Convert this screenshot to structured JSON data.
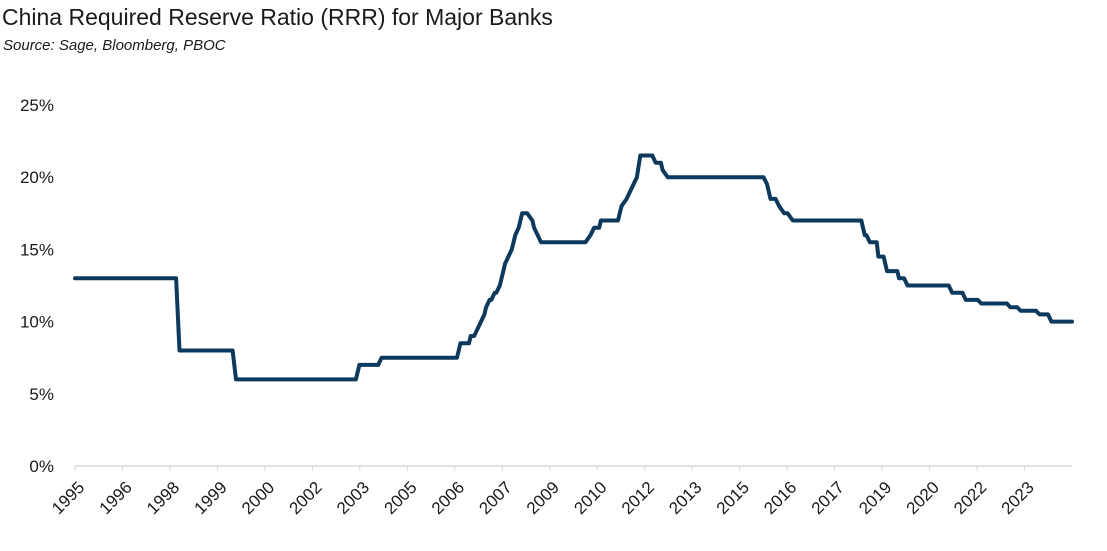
{
  "title": "China Required Reserve Ratio (RRR) for Major Banks",
  "subtitle": "Source: Sage, Bloomberg, PBOC",
  "colors": {
    "line": "#0d3a5c",
    "axis": "#d9d9d9",
    "text": "#1a1a1a"
  },
  "chart_data": {
    "type": "line",
    "title": "China Required Reserve Ratio (RRR) for Major Banks",
    "subtitle": "Source: Sage, Bloomberg, PBOC",
    "xlabel": "",
    "ylabel": "",
    "ylim": [
      0,
      25
    ],
    "xlim": [
      1995,
      2024.1
    ],
    "yticks": [
      0,
      5,
      10,
      15,
      20,
      25
    ],
    "ytick_labels": [
      "0%",
      "5%",
      "10%",
      "15%",
      "20%",
      "25%"
    ],
    "xtick_labels": [
      "1995",
      "1996",
      "1998",
      "1999",
      "2000",
      "2002",
      "2003",
      "2005",
      "2006",
      "2007",
      "2009",
      "2010",
      "2012",
      "2013",
      "2015",
      "2016",
      "2017",
      "2019",
      "2020",
      "2022",
      "2023"
    ],
    "grid": false,
    "series": [
      {
        "x": [
          1995.0,
          1997.95,
          1998.05,
          1999.6,
          1999.7,
          2003.2,
          2003.3,
          2003.85,
          2003.95,
          2006.15,
          2006.25,
          2006.5,
          2006.55,
          2006.65,
          2006.75,
          2006.85,
          2006.95,
          2007.0,
          2007.1,
          2007.15,
          2007.25,
          2007.3,
          2007.4,
          2007.5,
          2007.55,
          2007.65,
          2007.75,
          2007.85,
          2007.95,
          2008.0,
          2008.05,
          2008.15,
          2008.2,
          2008.35,
          2008.4,
          2008.6,
          2008.7,
          2008.75,
          2008.85,
          2008.95,
          2009.9,
          2010.05,
          2010.15,
          2010.3,
          2010.35,
          2010.85,
          2010.95,
          2011.1,
          2011.2,
          2011.3,
          2011.4,
          2011.5,
          2011.85,
          2011.95,
          2012.1,
          2012.15,
          2012.3,
          2012.4,
          2015.1,
          2015.2,
          2015.3,
          2015.45,
          2015.55,
          2015.7,
          2015.8,
          2015.95,
          2016.05,
          2017.95,
          2018.05,
          2018.1,
          2018.2,
          2018.4,
          2018.45,
          2018.6,
          2018.7,
          2019.0,
          2019.05,
          2019.2,
          2019.3,
          2020.5,
          2020.6,
          2020.9,
          2021.0,
          2021.35,
          2021.45,
          2022.2,
          2022.3,
          2022.5,
          2022.6,
          2023.05,
          2023.15,
          2023.4,
          2023.5,
          2024.1
        ],
        "y": [
          13,
          13,
          8,
          8,
          6,
          6,
          7,
          7,
          7.5,
          7.5,
          8.5,
          8.5,
          9,
          9,
          9.5,
          10,
          10.5,
          11,
          11.5,
          11.5,
          12,
          12,
          12.5,
          13.5,
          14,
          14.5,
          15,
          16,
          16.5,
          17,
          17.5,
          17.5,
          17.5,
          17,
          16.5,
          15.5,
          15.5,
          15.5,
          15.5,
          15.5,
          15.5,
          16,
          16.5,
          16.5,
          17,
          17,
          18,
          18.5,
          19,
          19.5,
          20,
          21.5,
          21.5,
          21,
          21,
          20.5,
          20,
          20,
          20,
          19.5,
          18.5,
          18.5,
          18,
          17.5,
          17.5,
          17,
          17,
          17,
          16,
          16,
          15.5,
          15.5,
          14.5,
          14.5,
          13.5,
          13.5,
          13,
          13,
          12.5,
          12.5,
          12,
          12,
          11.5,
          11.5,
          11.25,
          11.25,
          11,
          11,
          10.75,
          10.75,
          10.5,
          10.5,
          10,
          10
        ]
      }
    ]
  }
}
